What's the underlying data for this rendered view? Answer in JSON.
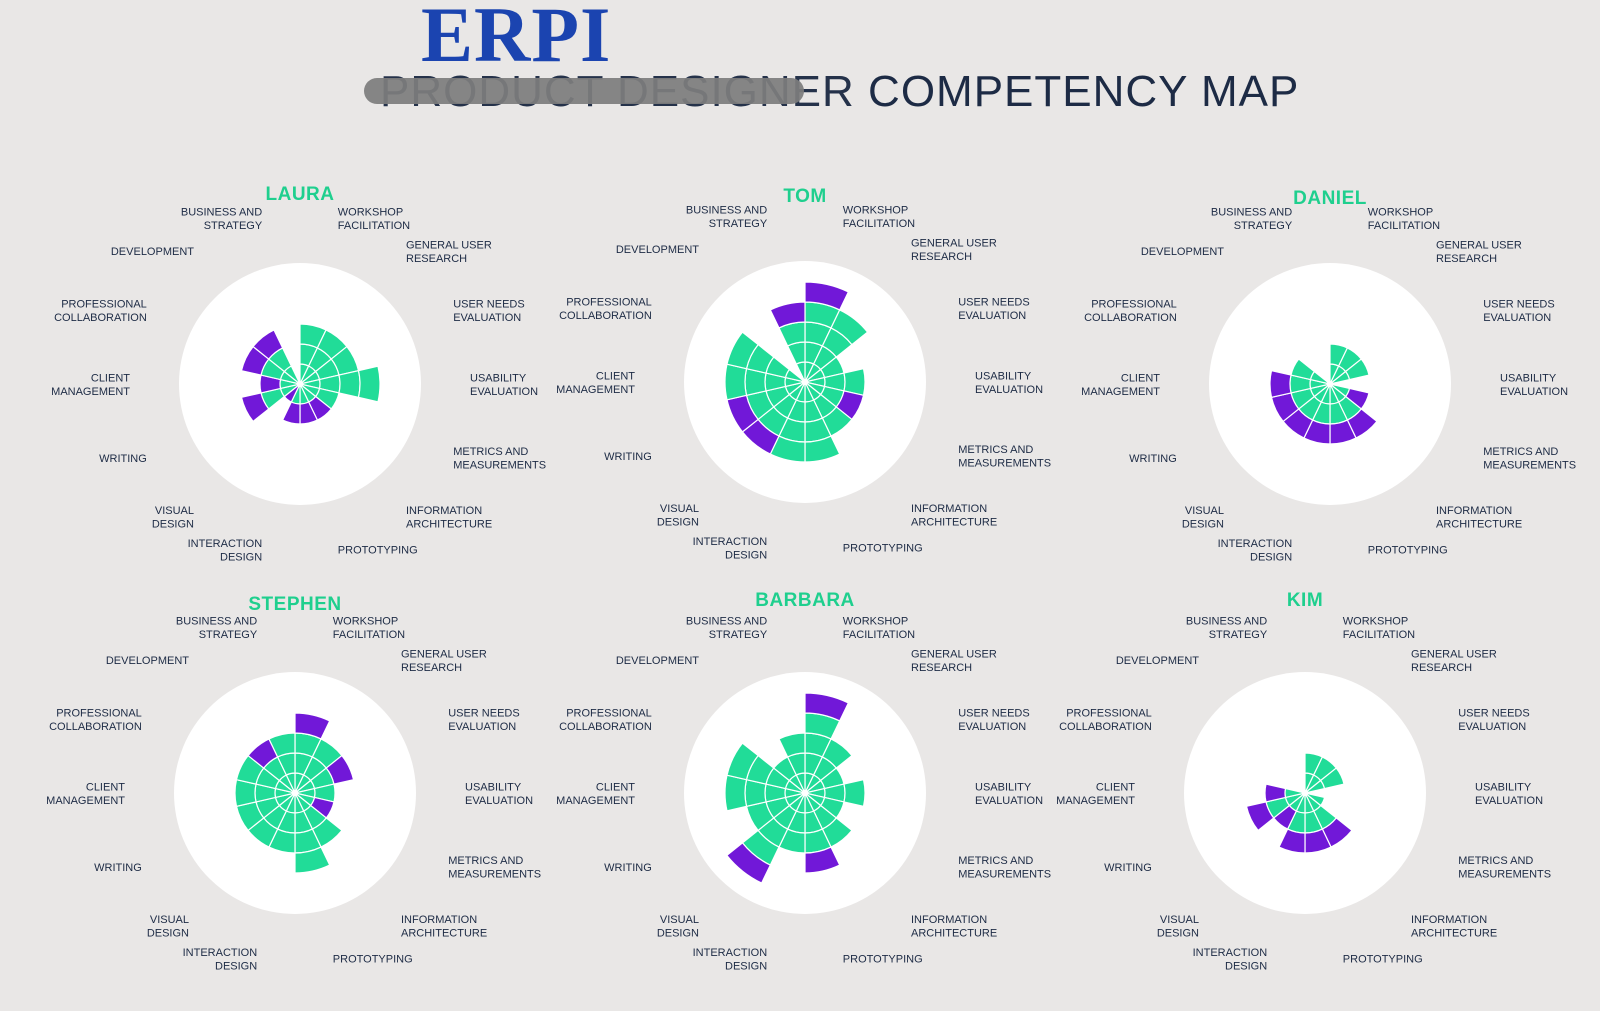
{
  "logo": "ERPI",
  "title": {
    "struck": "PRODUCT DESIGNER",
    "rest": "COMPETENCY MAP"
  },
  "colors": {
    "background": "#e9e7e6",
    "disc": "#ffffff",
    "green": "#21dc98",
    "purple": "#7118d8",
    "name": "#1fcf8e",
    "label": "#1d2b45",
    "logo": "#1b44b0"
  },
  "chart_data": [
    {
      "type": "polar-area",
      "title": "LAURA",
      "categories": [
        "WORKSHOP FACILITATION",
        "GENERAL USER RESEARCH",
        "USER NEEDS EVALUATION",
        "USABILITY EVALUATION",
        "METRICS AND MEASUREMENTS",
        "INFORMATION ARCHITECTURE",
        "PROTOTYPING",
        "INTERACTION DESIGN",
        "VISUAL DESIGN",
        "WRITING",
        "CLIENT MANAGEMENT",
        "PROFESSIONAL COLLABORATION",
        "DEVELOPMENT",
        "BUSINESS AND STRATEGY"
      ],
      "rlim": [
        0,
        5
      ],
      "series": [
        {
          "values": [
            3,
            3,
            3,
            4,
            2,
            1,
            1,
            1,
            0,
            2,
            1,
            2,
            2,
            0
          ]
        },
        {
          "values": [
            0,
            0,
            0,
            0,
            0,
            1,
            1,
            1,
            1,
            1,
            1,
            1,
            1,
            0
          ]
        }
      ]
    },
    {
      "type": "polar-area",
      "title": "TOM",
      "categories": [
        "WORKSHOP FACILITATION",
        "GENERAL USER RESEARCH",
        "USER NEEDS EVALUATION",
        "USABILITY EVALUATION",
        "METRICS AND MEASUREMENTS",
        "INFORMATION ARCHITECTURE",
        "PROTOTYPING",
        "INTERACTION DESIGN",
        "VISUAL DESIGN",
        "WRITING",
        "CLIENT MANAGEMENT",
        "PROFESSIONAL COLLABORATION",
        "DEVELOPMENT",
        "BUSINESS AND STRATEGY"
      ],
      "rlim": [
        0,
        5
      ],
      "series": [
        {
          "values": [
            4,
            4,
            2,
            3,
            2,
            3,
            4,
            4,
            3,
            3,
            4,
            4,
            0,
            3
          ]
        },
        {
          "values": [
            1,
            0,
            0,
            0,
            1,
            0,
            0,
            0,
            1,
            1,
            0,
            0,
            0,
            1
          ]
        }
      ]
    },
    {
      "type": "polar-area",
      "title": "DANIEL",
      "categories": [
        "WORKSHOP FACILITATION",
        "GENERAL USER RESEARCH",
        "USER NEEDS EVALUATION",
        "USABILITY EVALUATION",
        "METRICS AND MEASUREMENTS",
        "INFORMATION ARCHITECTURE",
        "PROTOTYPING",
        "INTERACTION DESIGN",
        "VISUAL DESIGN",
        "WRITING",
        "CLIENT MANAGEMENT",
        "PROFESSIONAL COLLABORATION",
        "DEVELOPMENT",
        "BUSINESS AND STRATEGY"
      ],
      "rlim": [
        0,
        5
      ],
      "series": [
        {
          "values": [
            2,
            2,
            2,
            0,
            1,
            2,
            2,
            2,
            2,
            2,
            2,
            2,
            0,
            0
          ]
        },
        {
          "values": [
            0,
            0,
            0,
            0,
            1,
            1,
            1,
            1,
            1,
            1,
            1,
            0,
            0,
            0
          ]
        }
      ]
    },
    {
      "type": "polar-area",
      "title": "STEPHEN",
      "categories": [
        "WORKSHOP FACILITATION",
        "GENERAL USER RESEARCH",
        "USER NEEDS EVALUATION",
        "USABILITY EVALUATION",
        "METRICS AND MEASUREMENTS",
        "INFORMATION ARCHITECTURE",
        "PROTOTYPING",
        "INTERACTION DESIGN",
        "VISUAL DESIGN",
        "WRITING",
        "CLIENT MANAGEMENT",
        "PROFESSIONAL COLLABORATION",
        "DEVELOPMENT",
        "BUSINESS AND STRATEGY"
      ],
      "rlim": [
        0,
        5
      ],
      "series": [
        {
          "values": [
            3,
            3,
            2,
            2,
            1,
            3,
            4,
            3,
            3,
            3,
            3,
            3,
            2,
            3
          ]
        },
        {
          "values": [
            1,
            0,
            1,
            0,
            1,
            0,
            0,
            0,
            0,
            0,
            0,
            0,
            1,
            0
          ]
        }
      ]
    },
    {
      "type": "polar-area",
      "title": "BARBARA",
      "categories": [
        "WORKSHOP FACILITATION",
        "GENERAL USER RESEARCH",
        "USER NEEDS EVALUATION",
        "USABILITY EVALUATION",
        "METRICS AND MEASUREMENTS",
        "INFORMATION ARCHITECTURE",
        "PROTOTYPING",
        "INTERACTION DESIGN",
        "VISUAL DESIGN",
        "WRITING",
        "CLIENT MANAGEMENT",
        "PROFESSIONAL COLLABORATION",
        "DEVELOPMENT",
        "BUSINESS AND STRATEGY"
      ],
      "rlim": [
        0,
        5
      ],
      "series": [
        {
          "values": [
            4,
            3,
            2,
            3,
            2,
            3,
            3,
            3,
            4,
            3,
            4,
            4,
            2,
            3
          ]
        },
        {
          "values": [
            1,
            0,
            0,
            0,
            0,
            0,
            1,
            0,
            1,
            0,
            0,
            0,
            0,
            0
          ]
        }
      ]
    },
    {
      "type": "polar-area",
      "title": "KIM",
      "categories": [
        "WORKSHOP FACILITATION",
        "GENERAL USER RESEARCH",
        "USER NEEDS EVALUATION",
        "USABILITY EVALUATION",
        "METRICS AND MEASUREMENTS",
        "INFORMATION ARCHITECTURE",
        "PROTOTYPING",
        "INTERACTION DESIGN",
        "VISUAL DESIGN",
        "WRITING",
        "CLIENT MANAGEMENT",
        "PROFESSIONAL COLLABORATION",
        "DEVELOPMENT",
        "BUSINESS AND STRATEGY"
      ],
      "rlim": [
        0,
        5
      ],
      "series": [
        {
          "values": [
            2,
            2,
            2,
            0,
            1,
            2,
            2,
            2,
            1,
            2,
            1,
            0,
            0,
            0
          ]
        },
        {
          "values": [
            0,
            0,
            0,
            0,
            0,
            1,
            1,
            1,
            1,
            1,
            1,
            0,
            0,
            0
          ]
        }
      ]
    }
  ]
}
